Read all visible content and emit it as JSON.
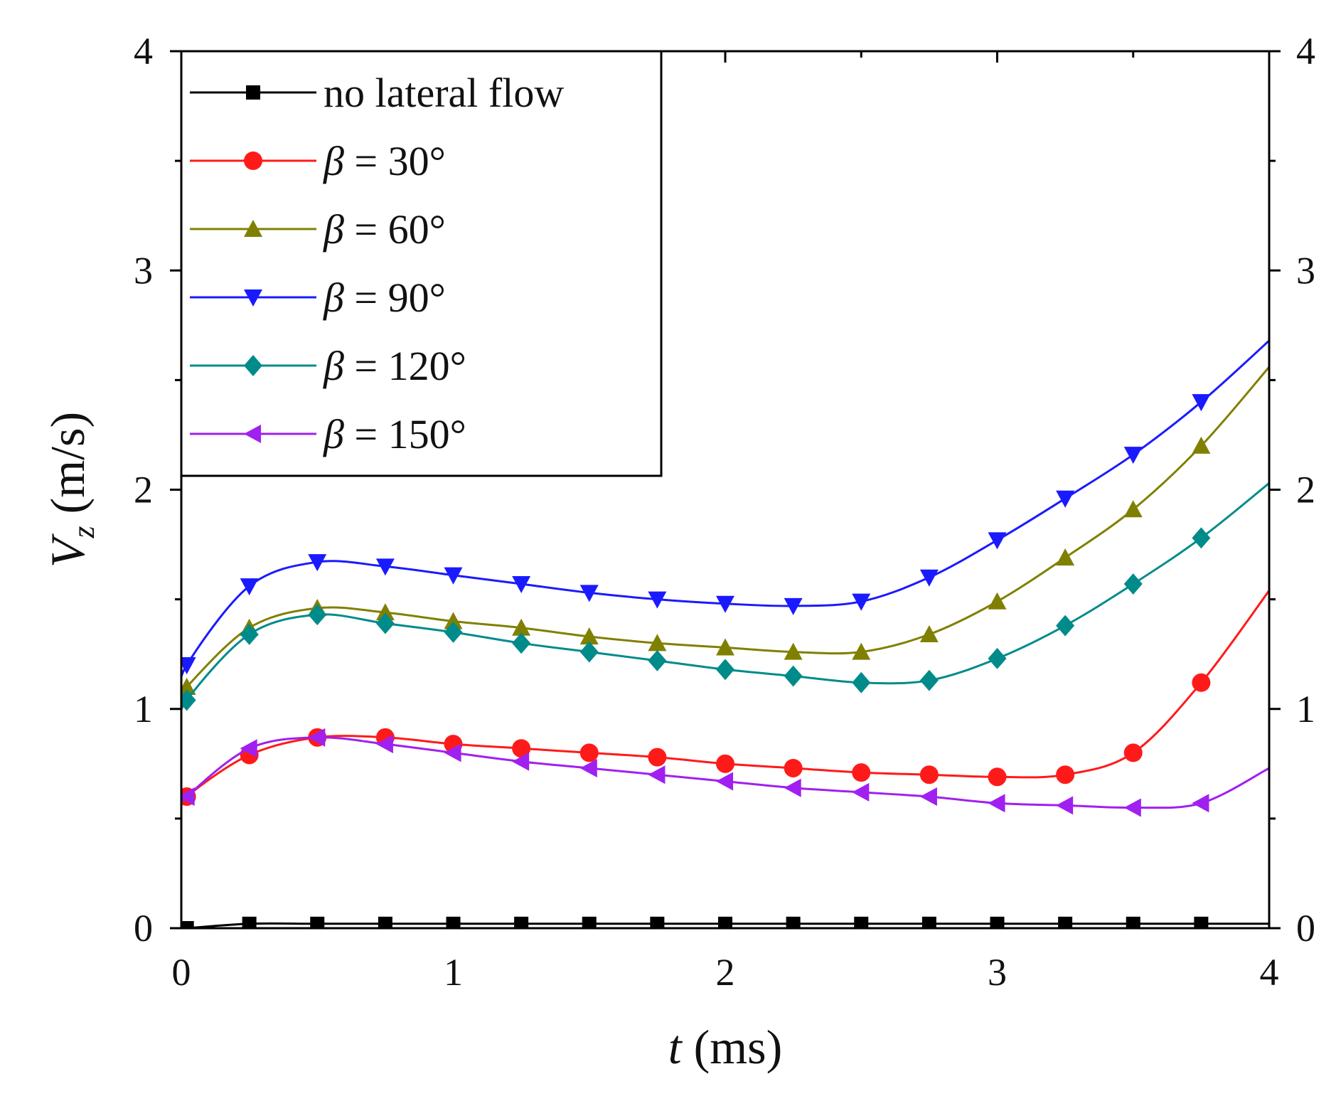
{
  "chart_data": {
    "type": "line",
    "title": "",
    "xlabel": {
      "var": "t",
      "unit": "(ms)"
    },
    "ylabel": {
      "var": "V",
      "sub": "z",
      "unit": "(m/s)"
    },
    "xlim": [
      0,
      4
    ],
    "ylim": [
      0,
      4
    ],
    "x_ticks": [
      "0",
      "1",
      "2",
      "3",
      "4"
    ],
    "y_ticks": [
      "0",
      "1",
      "2",
      "3",
      "4"
    ],
    "right_y_ticks": [
      "0",
      "1",
      "2",
      "3",
      "4"
    ],
    "grid": false,
    "legend_position": "top-left",
    "series": [
      {
        "name": "no lateral flow",
        "legend_prefix": "",
        "legend_value": "no lateral flow",
        "color": "#000000",
        "marker": "square",
        "x": [
          0,
          0.02,
          0.25,
          0.5,
          0.75,
          1.0,
          1.25,
          1.5,
          1.75,
          2.0,
          2.25,
          2.5,
          2.75,
          3.0,
          3.25,
          3.5,
          3.75,
          4.0
        ],
        "y": [
          0,
          0.0,
          0.02,
          0.02,
          0.02,
          0.02,
          0.02,
          0.02,
          0.02,
          0.02,
          0.02,
          0.02,
          0.02,
          0.02,
          0.02,
          0.02,
          0.02,
          0.02
        ]
      },
      {
        "name": "β = 30°",
        "legend_prefix": "β",
        "legend_value": " = 30°",
        "color": "#ff1a1a",
        "marker": "circle",
        "x": [
          0,
          0.02,
          0.25,
          0.5,
          0.75,
          1.0,
          1.25,
          1.5,
          1.75,
          2.0,
          2.25,
          2.5,
          2.75,
          3.0,
          3.25,
          3.5,
          3.75,
          4.0
        ],
        "y": [
          0.53,
          0.6,
          0.79,
          0.87,
          0.87,
          0.84,
          0.82,
          0.8,
          0.78,
          0.75,
          0.73,
          0.71,
          0.7,
          0.69,
          0.7,
          0.8,
          1.12,
          1.54
        ]
      },
      {
        "name": "β = 60°",
        "legend_prefix": "β",
        "legend_value": " = 60°",
        "color": "#808000",
        "marker": "triangle-up",
        "x": [
          0,
          0.02,
          0.25,
          0.5,
          0.75,
          1.0,
          1.25,
          1.5,
          1.75,
          2.0,
          2.25,
          2.5,
          2.75,
          3.0,
          3.25,
          3.5,
          3.75,
          4.0
        ],
        "y": [
          1.04,
          1.1,
          1.37,
          1.46,
          1.44,
          1.4,
          1.37,
          1.33,
          1.3,
          1.28,
          1.26,
          1.26,
          1.34,
          1.49,
          1.69,
          1.91,
          2.2,
          2.56
        ]
      },
      {
        "name": "β = 90°",
        "legend_prefix": "β",
        "legend_value": " = 90°",
        "color": "#1a1aff",
        "marker": "triangle-down",
        "x": [
          0,
          0.02,
          0.25,
          0.5,
          0.75,
          1.0,
          1.25,
          1.5,
          1.75,
          2.0,
          2.25,
          2.5,
          2.75,
          3.0,
          3.25,
          3.5,
          3.75,
          4.0
        ],
        "y": [
          1.06,
          1.2,
          1.56,
          1.67,
          1.65,
          1.61,
          1.57,
          1.53,
          1.5,
          1.48,
          1.47,
          1.49,
          1.6,
          1.77,
          1.96,
          2.16,
          2.4,
          2.68
        ]
      },
      {
        "name": "β = 120°",
        "legend_prefix": "β",
        "legend_value": " = 120°",
        "color": "#008b8b",
        "marker": "diamond",
        "x": [
          0,
          0.02,
          0.25,
          0.5,
          0.75,
          1.0,
          1.25,
          1.5,
          1.75,
          2.0,
          2.25,
          2.5,
          2.75,
          3.0,
          3.25,
          3.5,
          3.75,
          4.0
        ],
        "y": [
          0.93,
          1.04,
          1.34,
          1.43,
          1.39,
          1.35,
          1.3,
          1.26,
          1.22,
          1.18,
          1.15,
          1.12,
          1.13,
          1.23,
          1.38,
          1.57,
          1.78,
          2.03
        ]
      },
      {
        "name": "β = 150°",
        "legend_prefix": "β",
        "legend_value": " = 150°",
        "color": "#a020f0",
        "marker": "triangle-left",
        "x": [
          0,
          0.02,
          0.25,
          0.5,
          0.75,
          1.0,
          1.25,
          1.5,
          1.75,
          2.0,
          2.25,
          2.5,
          2.75,
          3.0,
          3.25,
          3.5,
          3.75,
          4.0
        ],
        "y": [
          0.55,
          0.6,
          0.82,
          0.87,
          0.84,
          0.8,
          0.76,
          0.73,
          0.7,
          0.67,
          0.64,
          0.62,
          0.6,
          0.57,
          0.56,
          0.55,
          0.57,
          0.73
        ]
      }
    ]
  }
}
